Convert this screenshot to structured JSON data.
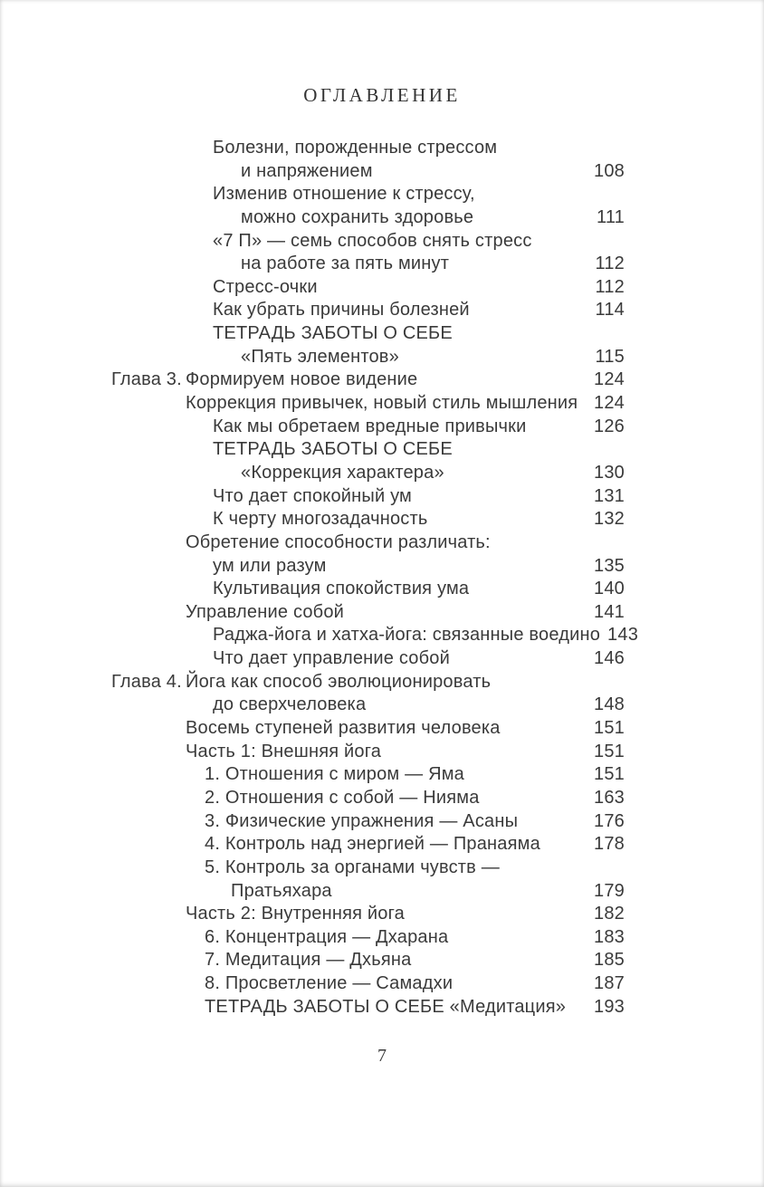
{
  "page": {
    "title": "ОГЛАВЛЕНИЕ",
    "number": "7"
  },
  "colors": {
    "text": "#3a3a3a",
    "background": "#ffffff"
  },
  "toc": {
    "rows": [
      {
        "label": "",
        "text": "Болезни, порожденные стрессом",
        "indent": "l2",
        "page": ""
      },
      {
        "label": "",
        "text": "и напряжением",
        "indent": "l2c",
        "page": "108"
      },
      {
        "label": "",
        "text": "Изменив отношение к стрессу,",
        "indent": "l2",
        "page": ""
      },
      {
        "label": "",
        "text": "можно сохранить здоровье",
        "indent": "l2c",
        "page": "111"
      },
      {
        "label": "",
        "text": "«7 П» — семь способов снять стресс",
        "indent": "l2",
        "page": ""
      },
      {
        "label": "",
        "text": "на работе за пять минут",
        "indent": "l2c",
        "page": "112"
      },
      {
        "label": "",
        "text": "Стресс-очки",
        "indent": "l2",
        "page": "112"
      },
      {
        "label": "",
        "text": "Как убрать причины болезней",
        "indent": "l2",
        "page": "114"
      },
      {
        "label": "",
        "text": "ТЕТРАДЬ ЗАБОТЫ О СЕБЕ",
        "indent": "l2",
        "page": ""
      },
      {
        "label": "",
        "text": "«Пять элементов»",
        "indent": "l2c",
        "page": "115"
      },
      {
        "label": "Глава 3.",
        "text": "Формируем новое видение",
        "indent": "l1",
        "page": "124"
      },
      {
        "label": "",
        "text": "Коррекция привычек, новый стиль мышления",
        "indent": "l1",
        "page": "124"
      },
      {
        "label": "",
        "text": "Как мы обретаем вредные привычки",
        "indent": "l2",
        "page": "126"
      },
      {
        "label": "",
        "text": "ТЕТРАДЬ ЗАБОТЫ О СЕБЕ",
        "indent": "l2",
        "page": ""
      },
      {
        "label": "",
        "text": "«Коррекция характера»",
        "indent": "l2c",
        "page": "130"
      },
      {
        "label": "",
        "text": "Что дает спокойный ум",
        "indent": "l2",
        "page": "131"
      },
      {
        "label": "",
        "text": "К черту многозадачность",
        "indent": "l2",
        "page": "132"
      },
      {
        "label": "",
        "text": "Обретение способности различать:",
        "indent": "l1",
        "page": ""
      },
      {
        "label": "",
        "text": "ум или разум",
        "indent": "l2",
        "page": "135"
      },
      {
        "label": "",
        "text": "Культивация спокойствия ума",
        "indent": "l2",
        "page": "140"
      },
      {
        "label": "",
        "text": "Управление собой",
        "indent": "l1",
        "page": "141"
      },
      {
        "label": "",
        "text": "Раджа-йога и хатха-йога: связанные воедино",
        "indent": "l2",
        "page": "143"
      },
      {
        "label": "",
        "text": "Что дает управление собой",
        "indent": "l2",
        "page": "146"
      },
      {
        "label": "Глава 4.",
        "text": "Йога как способ эволюционировать",
        "indent": "l1",
        "page": ""
      },
      {
        "label": "",
        "text": "до сверхчеловека",
        "indent": "l2",
        "page": "148"
      },
      {
        "label": "",
        "text": "Восемь ступеней развития человека",
        "indent": "l1",
        "page": "151"
      },
      {
        "label": "",
        "text": "Часть 1: Внешняя йога",
        "indent": "l1",
        "page": "151"
      },
      {
        "label": "",
        "text": "1. Отношения с миром — Яма",
        "indent": "num",
        "page": "151"
      },
      {
        "label": "",
        "text": "2. Отношения с собой — Нияма",
        "indent": "num",
        "page": "163"
      },
      {
        "label": "",
        "text": "3. Физические упражнения — Асаны",
        "indent": "num",
        "page": "176"
      },
      {
        "label": "",
        "text": "4. Контроль над энергией — Пранаяма",
        "indent": "num",
        "page": "178"
      },
      {
        "label": "",
        "text": "5. Контроль за органами чувств —",
        "indent": "num",
        "page": ""
      },
      {
        "label": "",
        "text": "Пратьяхара",
        "indent": "numc",
        "page": "179"
      },
      {
        "label": "",
        "text": "Часть 2: Внутренняя йога",
        "indent": "l1",
        "page": "182"
      },
      {
        "label": "",
        "text": "6. Концентрация — Дхарана",
        "indent": "num",
        "page": "183"
      },
      {
        "label": "",
        "text": "7. Медитация — Дхьяна",
        "indent": "num",
        "page": "185"
      },
      {
        "label": "",
        "text": "8. Просветление — Самадхи",
        "indent": "num",
        "page": "187"
      },
      {
        "label": "",
        "text": "ТЕТРАДЬ ЗАБОТЫ О СЕБЕ «Медитация»",
        "indent": "num",
        "page": "193"
      }
    ]
  }
}
